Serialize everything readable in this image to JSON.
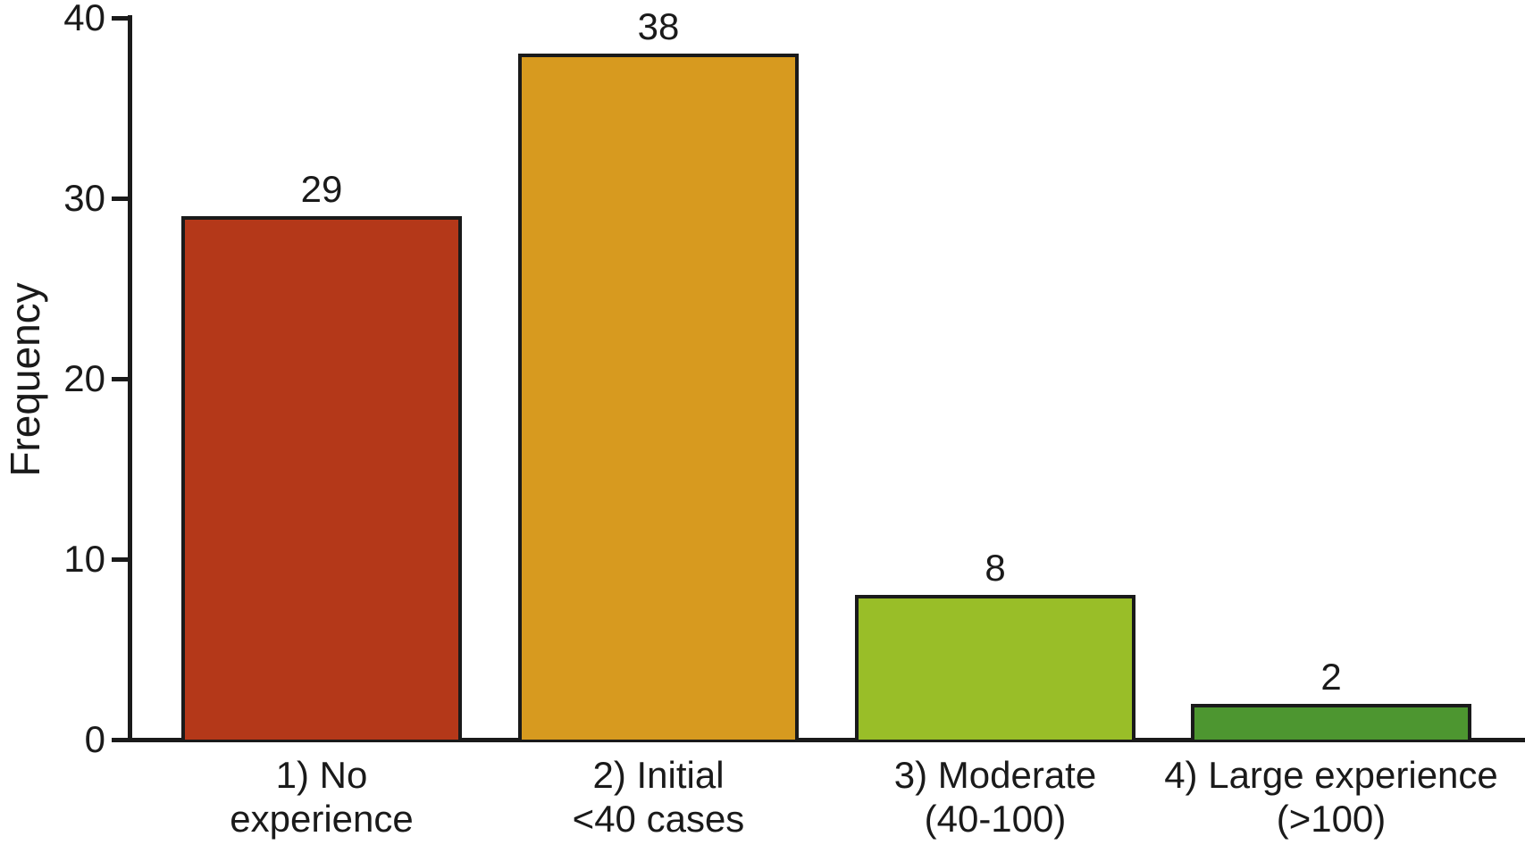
{
  "chart_data": {
    "type": "bar",
    "title": "",
    "xlabel": "",
    "ylabel": "Frequency",
    "ylim": [
      0,
      40
    ],
    "y_ticks": [
      0,
      10,
      20,
      30,
      40
    ],
    "grid": false,
    "legend": "none",
    "categories": [
      [
        "1) No",
        "experience"
      ],
      [
        "2) Initial",
        "<40 cases"
      ],
      [
        "3) Moderate",
        "(40-100)"
      ],
      [
        "4) Large experience",
        "(>100)"
      ]
    ],
    "values": [
      29,
      38,
      8,
      2
    ],
    "value_labels": [
      "29",
      "38",
      "8",
      "2"
    ],
    "bar_colors": [
      "#b43819",
      "#d79a1f",
      "#99be28",
      "#4d9630"
    ]
  },
  "colors": {
    "background": "#ffffff",
    "axis": "#1a1a1a",
    "text": "#1a1a1a",
    "bar_border": "#1a1a1a"
  }
}
